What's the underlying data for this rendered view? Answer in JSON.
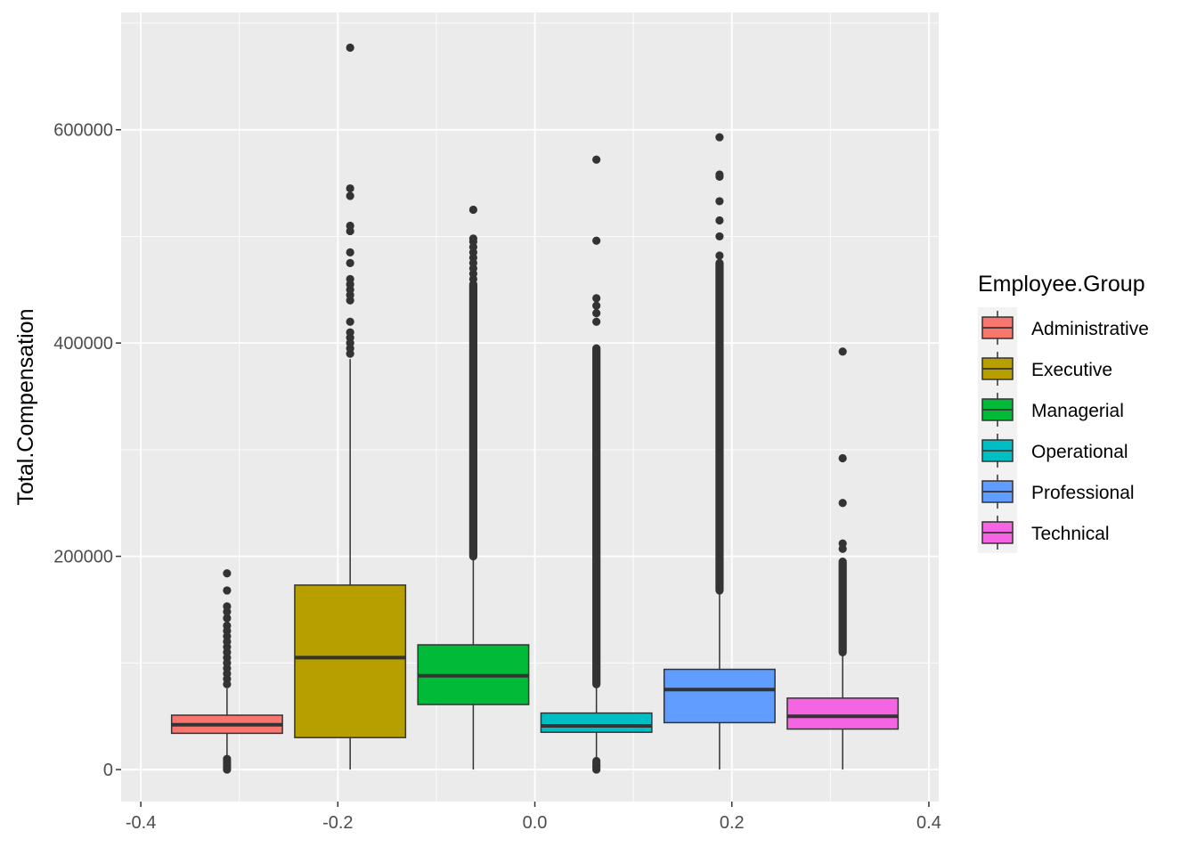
{
  "chart_data": {
    "type": "box",
    "title": "",
    "xlabel": "",
    "ylabel": "Total.Compensation",
    "xlim": [
      -0.42,
      0.41
    ],
    "ylim": [
      -30000,
      710000
    ],
    "x_ticks": [
      -0.4,
      -0.2,
      0.0,
      0.2,
      0.4
    ],
    "x_tick_labels": [
      "-0.4",
      "-0.2",
      "0.0",
      "0.2",
      "0.4"
    ],
    "y_ticks": [
      0,
      200000,
      400000,
      600000
    ],
    "y_tick_labels": [
      "0",
      "200000",
      "400000",
      "600000"
    ],
    "grid": true,
    "legend": {
      "title": "Employee.Group",
      "position": "right"
    },
    "series": [
      {
        "name": "Administrative",
        "color": "#F8766D",
        "x_center": -0.3125,
        "box_width": 0.1125,
        "whisker_low": 0,
        "q1": 34000,
        "median": 42000,
        "q3": 51000,
        "whisker_high": 76000,
        "outliers_high": [
          80000,
          85000,
          90000,
          95000,
          100000,
          105000,
          110000,
          115000,
          120000,
          125000,
          130000,
          135000,
          142000,
          148000,
          153000,
          168000,
          184000
        ],
        "outliers_low": [
          0,
          2000,
          4000,
          6000,
          8000,
          10000
        ]
      },
      {
        "name": "Executive",
        "color": "#B79F00",
        "x_center": -0.1875,
        "box_width": 0.1125,
        "whisker_low": 0,
        "q1": 30000,
        "median": 105000,
        "q3": 173000,
        "whisker_high": 385000,
        "outliers_high": [
          390000,
          395000,
          400000,
          405000,
          410000,
          420000,
          440000,
          445000,
          450000,
          455000,
          460000,
          475000,
          485000,
          505000,
          510000,
          538000,
          545000,
          677000
        ]
      },
      {
        "name": "Managerial",
        "color": "#00BA38",
        "x_center": -0.0625,
        "box_width": 0.1125,
        "whisker_low": 0,
        "q1": 61000,
        "median": 88000,
        "q3": 117000,
        "whisker_high": 200000,
        "outliers_band": [
          200000,
          455000
        ],
        "outliers_high": [
          460000,
          465000,
          470000,
          475000,
          480000,
          485000,
          490000,
          495000,
          498000,
          525000
        ]
      },
      {
        "name": "Operational",
        "color": "#00BFC4",
        "x_center": 0.0625,
        "box_width": 0.1125,
        "whisker_low": 10000,
        "q1": 35000,
        "median": 41000,
        "q3": 53000,
        "whisker_high": 80000,
        "outliers_band": [
          80000,
          395000
        ],
        "outliers_high": [
          420000,
          428000,
          435000,
          442000,
          496000,
          572000
        ],
        "outliers_low": [
          0,
          2000,
          4000,
          6000,
          8000
        ]
      },
      {
        "name": "Professional",
        "color": "#619CFF",
        "x_center": 0.1875,
        "box_width": 0.1125,
        "whisker_low": 0,
        "q1": 44000,
        "median": 75000,
        "q3": 94000,
        "whisker_high": 168000,
        "outliers_band": [
          168000,
          475000
        ],
        "outliers_high": [
          482000,
          500000,
          515000,
          533000,
          556000,
          558000,
          593000
        ]
      },
      {
        "name": "Technical",
        "color": "#F564E3",
        "x_center": 0.3125,
        "box_width": 0.1125,
        "whisker_low": 0,
        "q1": 38000,
        "median": 50000,
        "q3": 67000,
        "whisker_high": 110000,
        "outliers_band": [
          110000,
          195000
        ],
        "outliers_high": [
          207000,
          212000,
          250000,
          292000,
          392000
        ]
      }
    ]
  }
}
